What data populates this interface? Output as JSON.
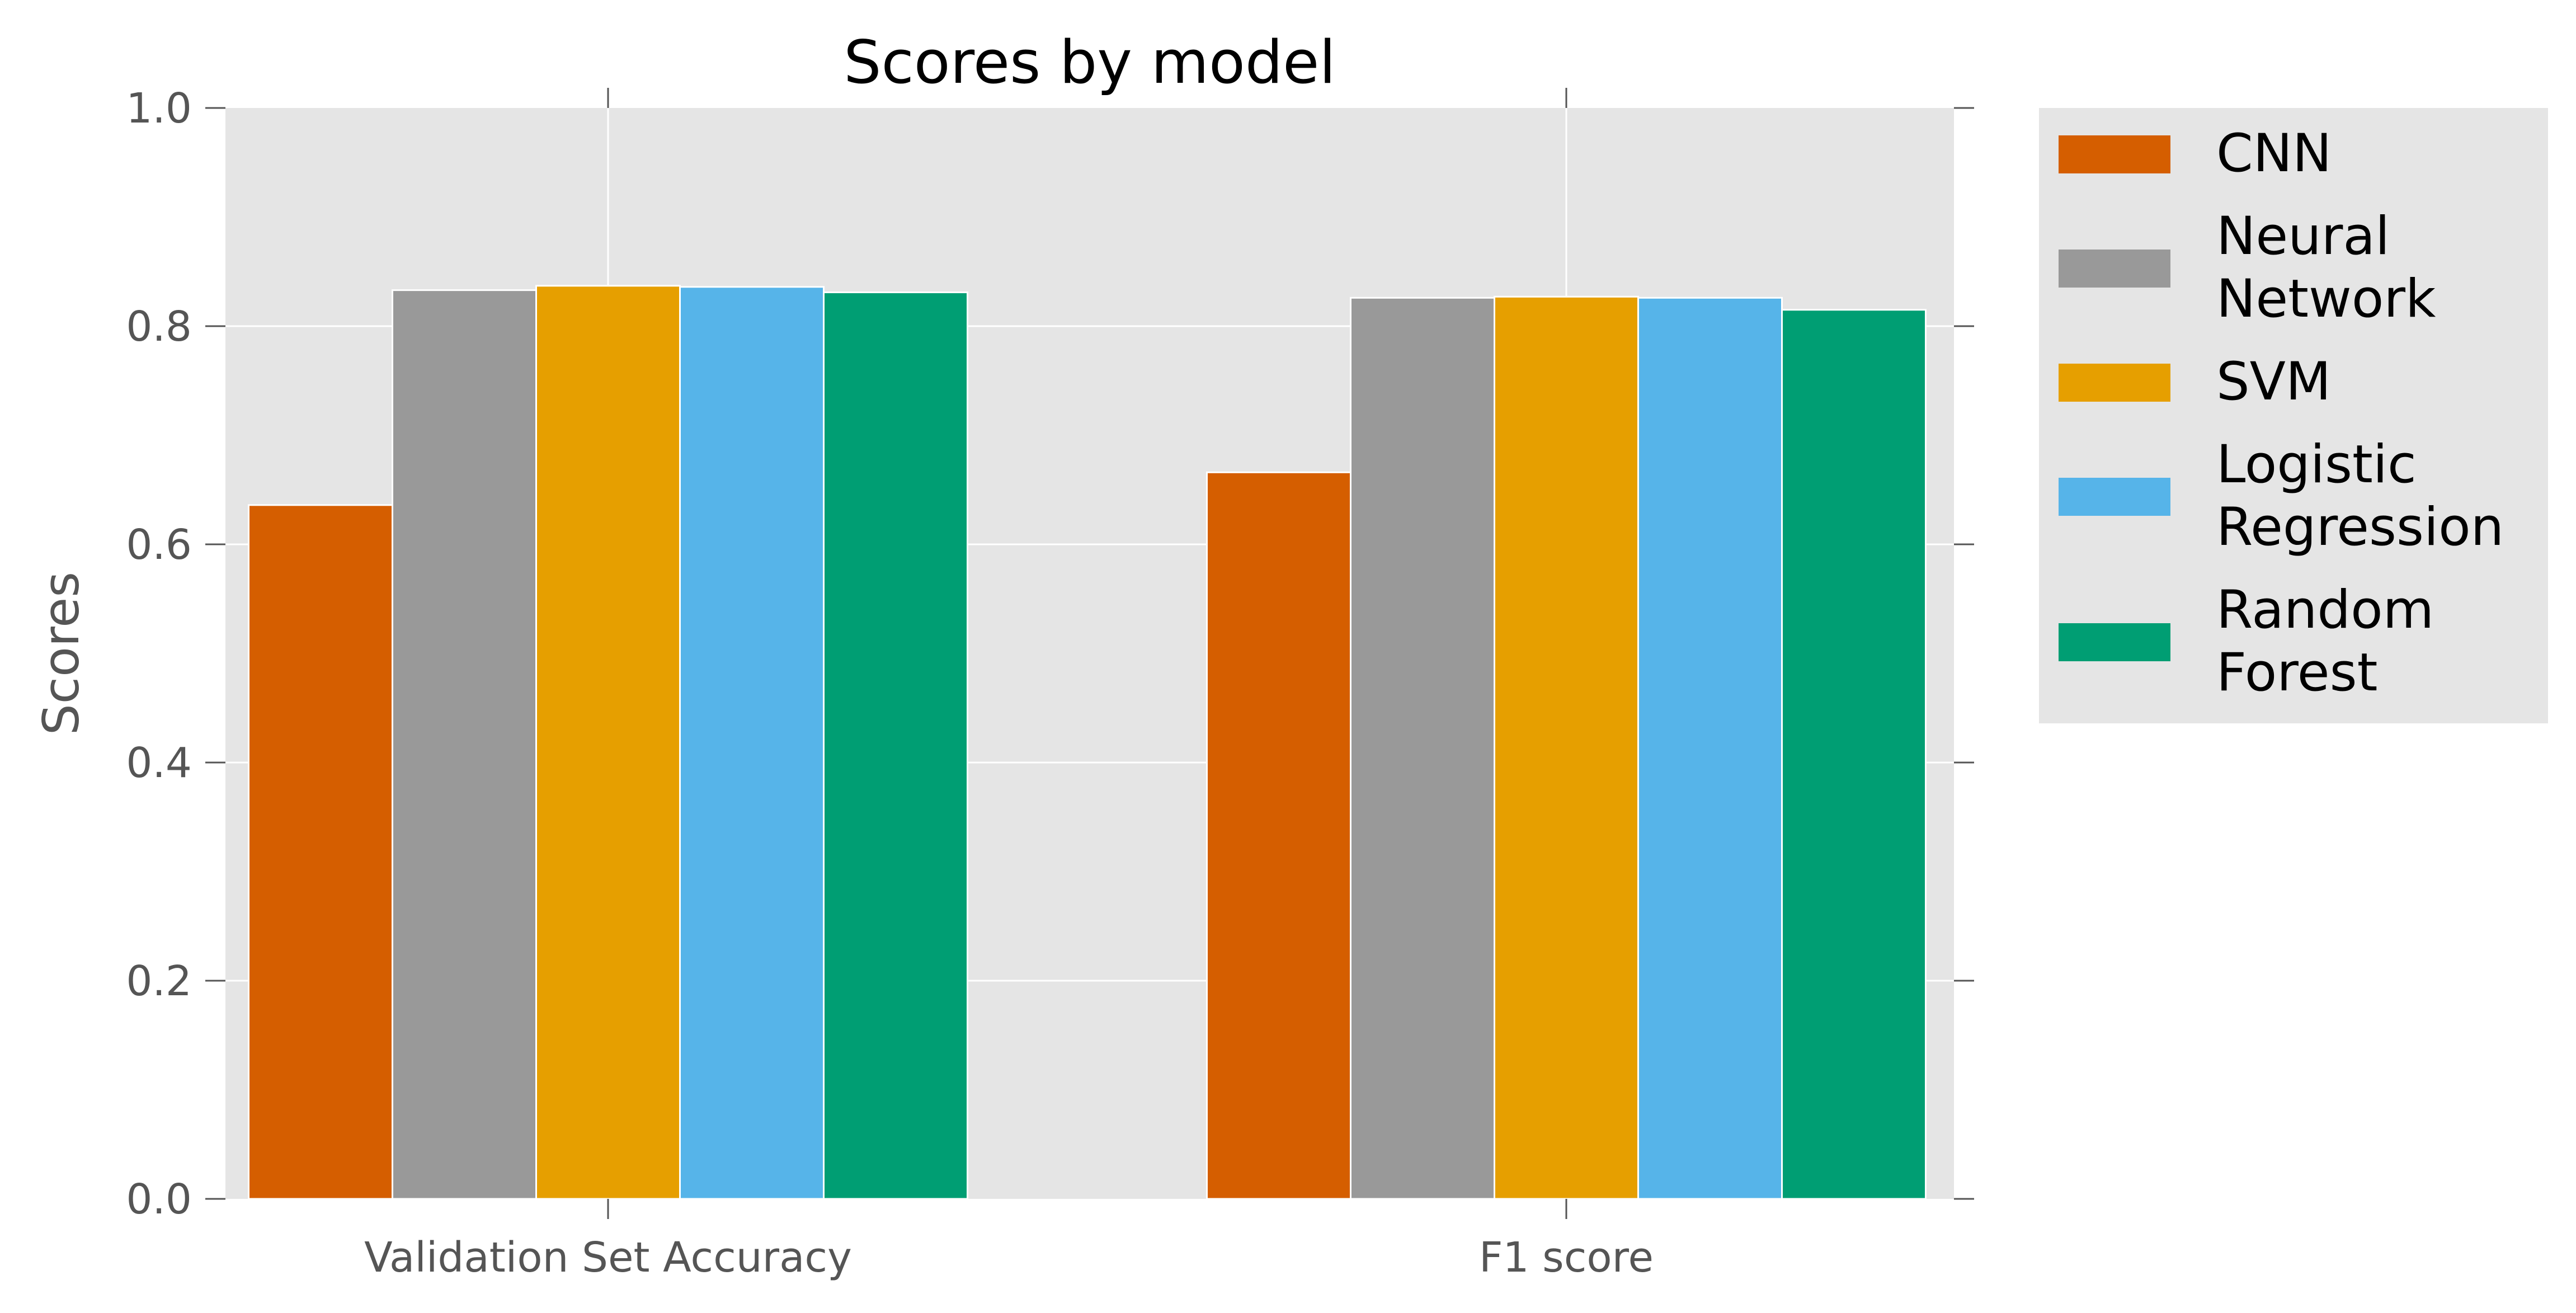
{
  "chart_data": {
    "type": "bar",
    "title": "Scores by model",
    "xlabel": "",
    "ylabel": "Scores",
    "ylim": [
      0,
      1.0
    ],
    "yticks": [
      "0.0",
      "0.2",
      "0.4",
      "0.6",
      "0.8",
      "1.0"
    ],
    "categories": [
      "Validation Set Accuracy",
      "F1 score"
    ],
    "series": [
      {
        "name": "CNN",
        "label_lines": [
          "CNN"
        ],
        "color": "#d55e00",
        "values": [
          0.636,
          0.666
        ]
      },
      {
        "name": "Neural Network",
        "label_lines": [
          "Neural",
          "Network"
        ],
        "color": "#999999",
        "values": [
          0.833,
          0.826
        ]
      },
      {
        "name": "SVM",
        "label_lines": [
          "SVM"
        ],
        "color": "#e69f00",
        "values": [
          0.837,
          0.827
        ]
      },
      {
        "name": "Logistic Regression",
        "label_lines": [
          "Logistic",
          "Regression"
        ],
        "color": "#56b4e9",
        "values": [
          0.836,
          0.826
        ]
      },
      {
        "name": "Random Forest",
        "label_lines": [
          "Random",
          "Forest"
        ],
        "color": "#009e73",
        "values": [
          0.831,
          0.815
        ]
      }
    ],
    "grid": true,
    "legend_position": "outside-right",
    "style": {
      "axes_background": "#e5e5e5",
      "grid_color": "#ffffff"
    }
  }
}
